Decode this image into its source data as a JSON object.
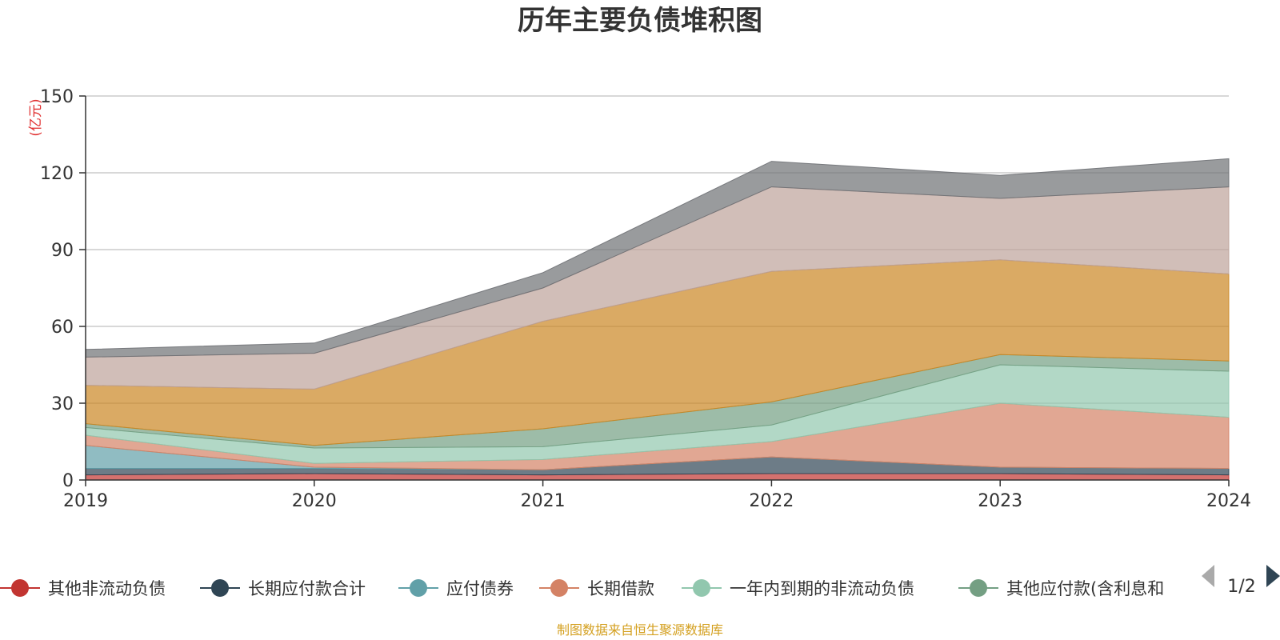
{
  "chart_data": {
    "type": "area",
    "stacked": true,
    "title": "历年主要负债堆积图",
    "unit_label": "(亿元)",
    "categories": [
      "2019",
      "2020",
      "2021",
      "2022",
      "2023",
      "2024"
    ],
    "ylim": [
      0,
      150
    ],
    "yticks": [
      0,
      30,
      60,
      90,
      120,
      150
    ],
    "grid": true,
    "legend_position": "bottom",
    "series": [
      {
        "name": "其他非流动负债",
        "color": "#c23531",
        "values": [
          2,
          2.5,
          2,
          2.5,
          2.5,
          2
        ]
      },
      {
        "name": "长期应付款合计",
        "color": "#2f4554",
        "values": [
          2.5,
          2,
          2,
          6.5,
          2.5,
          2.5
        ]
      },
      {
        "name": "应付债券",
        "color": "#61a0a8",
        "values": [
          9,
          0.5,
          0,
          0,
          0,
          0
        ]
      },
      {
        "name": "长期借款",
        "color": "#d48265",
        "values": [
          4,
          1.5,
          4,
          6,
          25,
          20
        ]
      },
      {
        "name": "一年内到期的非流动负债",
        "color": "#91c7ae",
        "values": [
          3,
          6,
          5,
          6.5,
          15,
          18
        ]
      },
      {
        "name": "其他应付款(含利息和",
        "color": "#749f83",
        "values": [
          1.5,
          1,
          7,
          9,
          4,
          4
        ]
      },
      {
        "name": "",
        "color": "#ca8622",
        "values": [
          15,
          22,
          42,
          51,
          37,
          34
        ]
      },
      {
        "name": "",
        "color": "#bda29a",
        "values": [
          11,
          14,
          13,
          33,
          24,
          34
        ]
      },
      {
        "name": "",
        "color": "#6e7074",
        "values": [
          3,
          4,
          6,
          10,
          9,
          11
        ]
      }
    ]
  },
  "legend": {
    "page_indicator": "1/2",
    "prev_icon": "triangle-left-icon",
    "next_icon": "triangle-right-icon"
  },
  "footer": {
    "source": "制图数据来自恒生聚源数据库"
  }
}
